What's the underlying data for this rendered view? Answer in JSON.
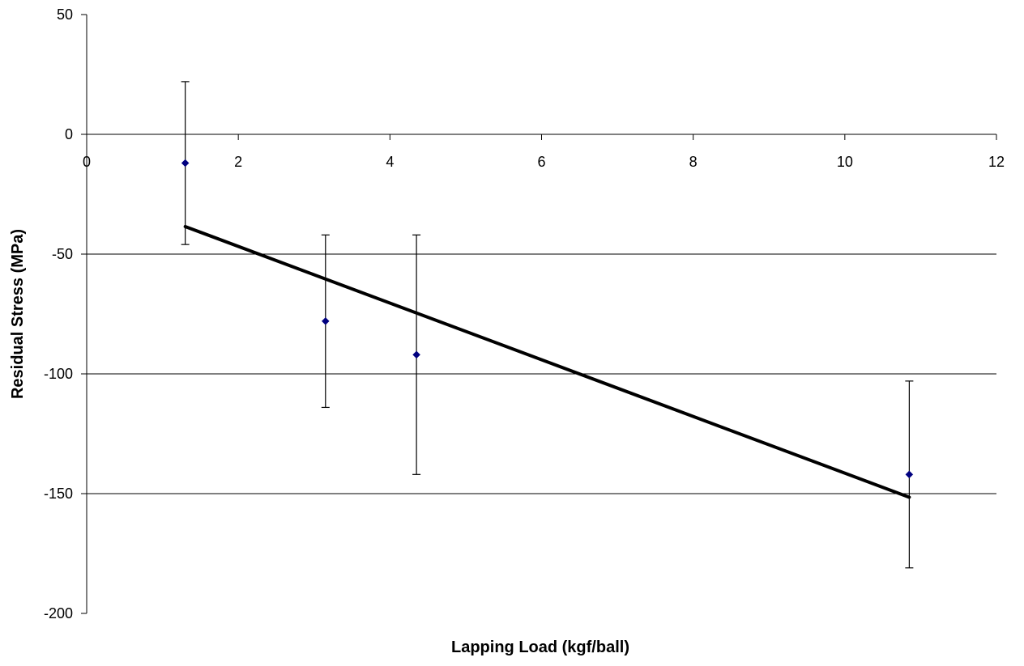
{
  "chart_data": {
    "type": "scatter",
    "title": "",
    "xlabel": "Lapping Load (kgf/ball)",
    "ylabel": "Residual Stress (MPa)",
    "xlim": [
      0,
      12
    ],
    "ylim": [
      -200,
      50
    ],
    "x_ticks": [
      0,
      2,
      4,
      6,
      8,
      10,
      12
    ],
    "y_ticks": [
      50,
      0,
      -50,
      -100,
      -150,
      -200
    ],
    "x_tick_labels": [
      "0",
      "2",
      "4",
      "6",
      "8",
      "10",
      "12"
    ],
    "y_tick_labels": [
      "50",
      "0",
      "-50",
      "-100",
      "-150",
      "-200"
    ],
    "grid": "horizontal",
    "legend": "none",
    "series": [
      {
        "points": [
          {
            "x": 1.3,
            "y": -12,
            "y_err_low": -46,
            "y_err_high": 22
          },
          {
            "x": 3.15,
            "y": -78,
            "y_err_low": -114,
            "y_err_high": -42
          },
          {
            "x": 4.35,
            "y": -92,
            "y_err_low": -142,
            "y_err_high": -42
          },
          {
            "x": 10.85,
            "y": -142,
            "y_err_low": -181,
            "y_err_high": -103
          }
        ],
        "marker": "diamond",
        "color": "#000080"
      }
    ],
    "trendline": {
      "x": [
        1.3,
        10.85
      ],
      "y": [
        -38.5,
        -151.5
      ],
      "color": "#000000"
    }
  }
}
